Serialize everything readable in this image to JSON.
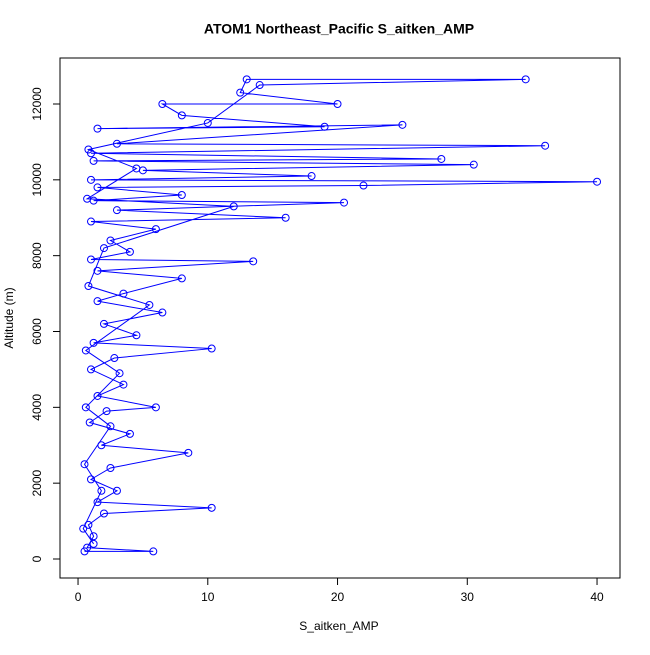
{
  "chart_data": {
    "type": "line",
    "title": "ATOM1 Northeast_Pacific S_aitken_AMP",
    "x_label": "S_aitken_AMP",
    "y_label": "Altitude (m)",
    "color": "#0000ff",
    "x": [
      0.5,
      5.8,
      0.7,
      1.2,
      0.8,
      2.0,
      10.3,
      1.5,
      3.0,
      1.0,
      2.5,
      8.5,
      1.8,
      4.0,
      0.9,
      2.2,
      6.0,
      1.5,
      3.5,
      1.0,
      2.8,
      10.3,
      1.2,
      4.5,
      2.0,
      6.5,
      1.5,
      3.5,
      8.0,
      1.5,
      13.5,
      1.0,
      4.0,
      2.5,
      6.0,
      1.0,
      16.0,
      3.0,
      20.5,
      1.2,
      8.0,
      1.5,
      22.0,
      40.0,
      1.0,
      18.0,
      5.0,
      30.5,
      1.2,
      28.0,
      1.0,
      36.0,
      3.0,
      25.0,
      1.5,
      19.0,
      8.0,
      6.5,
      20.0,
      12.5,
      13.0,
      34.5,
      14.0,
      10.0,
      0.8,
      4.5,
      0.7,
      12.0,
      2.0,
      0.8,
      5.5,
      0.6,
      3.2,
      0.6,
      2.5,
      0.5,
      1.8,
      0.4,
      1.2
    ],
    "values": [
      200,
      200,
      300,
      600,
      900,
      1200,
      1350,
      1500,
      1800,
      2100,
      2400,
      2800,
      3000,
      3300,
      3600,
      3900,
      4000,
      4300,
      4600,
      5000,
      5300,
      5550,
      5700,
      5900,
      6200,
      6500,
      6800,
      7000,
      7400,
      7600,
      7850,
      7900,
      8100,
      8400,
      8700,
      8900,
      9000,
      9200,
      9400,
      9450,
      9600,
      9800,
      9850,
      9950,
      10000,
      10100,
      10250,
      10400,
      10500,
      10550,
      10700,
      10900,
      10950,
      11450,
      11350,
      11400,
      11700,
      12000,
      12000,
      12300,
      12650,
      12650,
      12500,
      11500,
      10800,
      10300,
      9500,
      9300,
      8200,
      7200,
      6700,
      5500,
      4900,
      4000,
      3500,
      2500,
      1800,
      800,
      400
    ],
    "xlim": [
      -1.39,
      41.77
    ],
    "ylim": [
      -501,
      13213
    ],
    "xticks": [
      0,
      10,
      20,
      30,
      40
    ],
    "yticks": [
      0,
      2000,
      4000,
      6000,
      8000,
      10000,
      12000
    ]
  }
}
